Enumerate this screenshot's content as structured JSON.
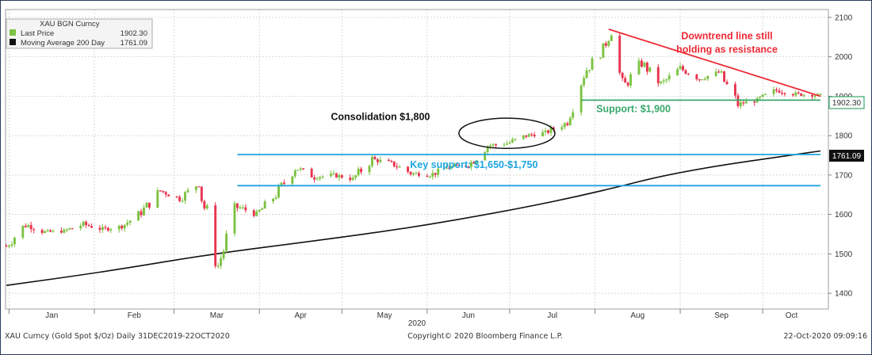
{
  "chart_data": {
    "type": "candlestick",
    "title": "XAU BGN Curncy",
    "legend": {
      "placement": "top-left",
      "entries": [
        {
          "label": "Last Price",
          "value": "1902.30",
          "color": "#7dc242"
        },
        {
          "label": "Moving Average 200 Day",
          "value": "1761.09",
          "color": "#111111"
        }
      ]
    },
    "x_axis": {
      "months": [
        "Jan",
        "Feb",
        "Mar",
        "Apr",
        "May",
        "Jun",
        "Jul",
        "Aug",
        "Sep",
        "Oct"
      ],
      "year_label": "2020",
      "range": [
        "2019-12-31",
        "2020-10-22"
      ]
    },
    "y_axis": {
      "position": "right",
      "range": [
        1360,
        2120
      ],
      "ticks": [
        1400,
        1500,
        1600,
        1700,
        1800,
        1900,
        2000,
        2100
      ]
    },
    "grid": true,
    "price_series": {
      "name": "Last Price",
      "up_color": "#7dc242",
      "down_color": "#e8344e",
      "dates": [
        "2019-12-31",
        "2020-01-07",
        "2020-01-14",
        "2020-01-21",
        "2020-01-28",
        "2020-02-04",
        "2020-02-11",
        "2020-02-18",
        "2020-02-25",
        "2020-03-03",
        "2020-03-10",
        "2020-03-17",
        "2020-03-24",
        "2020-03-31",
        "2020-04-07",
        "2020-04-14",
        "2020-04-21",
        "2020-04-28",
        "2020-05-05",
        "2020-05-12",
        "2020-05-19",
        "2020-05-26",
        "2020-06-02",
        "2020-06-09",
        "2020-06-16",
        "2020-06-23",
        "2020-06-30",
        "2020-07-07",
        "2020-07-14",
        "2020-07-21",
        "2020-07-28",
        "2020-08-04",
        "2020-08-07",
        "2020-08-11",
        "2020-08-18",
        "2020-08-25",
        "2020-09-01",
        "2020-09-08",
        "2020-09-15",
        "2020-09-22",
        "2020-09-29",
        "2020-10-06",
        "2020-10-13",
        "2020-10-22"
      ],
      "close": [
        1520,
        1575,
        1555,
        1558,
        1575,
        1562,
        1570,
        1605,
        1660,
        1640,
        1680,
        1470,
        1620,
        1600,
        1650,
        1720,
        1695,
        1700,
        1690,
        1740,
        1730,
        1705,
        1700,
        1720,
        1725,
        1775,
        1780,
        1800,
        1808,
        1830,
        1960,
        2020,
        2063,
        1920,
        1985,
        1930,
        1970,
        1945,
        1960,
        1880,
        1890,
        1915,
        1905,
        1902.3
      ]
    },
    "moving_average": {
      "name": "Moving Average 200 Day",
      "dates": [
        "2019-12-31",
        "2020-02-05",
        "2020-03-15",
        "2020-04-20",
        "2020-05-25",
        "2020-07-01",
        "2020-08-01",
        "2020-09-01",
        "2020-10-22"
      ],
      "values": [
        1420,
        1455,
        1500,
        1532,
        1565,
        1610,
        1655,
        1710,
        1761.09
      ]
    },
    "last_price_label": "1902.30",
    "ma_label": "1761.09",
    "annotations": [
      {
        "type": "trendline",
        "color": "#ee2a35",
        "from": [
          "2020-08-06",
          2070
        ],
        "to": [
          "2020-10-22",
          1900
        ]
      },
      {
        "type": "text",
        "text": "Downtrend line still",
        "color": "#ee2a35",
        "at": [
          "2020-09-18",
          2045
        ]
      },
      {
        "type": "text",
        "text": "holding as resistance",
        "color": "#ee2a35",
        "at": [
          "2020-09-18",
          2010
        ]
      },
      {
        "type": "hline",
        "color": "#38a86b",
        "y": 1890,
        "from": "2020-07-27",
        "to": "2020-10-22"
      },
      {
        "type": "text",
        "text": "Support: $1,900",
        "color": "#38a86b",
        "at": [
          "2020-08-15",
          1860
        ]
      },
      {
        "type": "hline",
        "color": "#1ea5df",
        "y": 1752,
        "from": "2020-03-24",
        "to": "2020-10-22"
      },
      {
        "type": "hline",
        "color": "#1ea5df",
        "y": 1673,
        "from": "2020-03-24",
        "to": "2020-10-22"
      },
      {
        "type": "text",
        "text": "Key support: $1,650-$1,750",
        "color": "#1ea5df",
        "at": [
          "2020-06-18",
          1718
        ]
      },
      {
        "type": "ellipse",
        "color": "#111111",
        "center": [
          "2020-06-30",
          1806
        ],
        "rx_days": 10,
        "ry": 24
      },
      {
        "type": "text",
        "text": "Consolidation $1,800",
        "color": "#111111",
        "at": [
          "2020-05-15",
          1840
        ]
      }
    ]
  },
  "footer": {
    "left": "XAU Curncy (Gold Spot  $/Oz) Daily 31DEC2019-22OCT2020",
    "center": "Copyright© 2020 Bloomberg Finance L.P.",
    "right": "22-Oct-2020 09:09:16"
  }
}
